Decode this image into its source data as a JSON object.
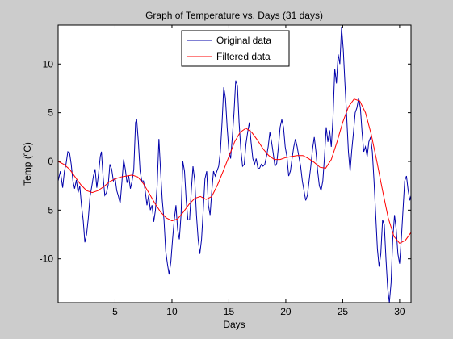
{
  "chart_data": {
    "type": "line",
    "title": "Graph of Temperature vs. Days (31 days)",
    "xlabel": "Days",
    "ylabel": "Temp (ºC)",
    "xlim": [
      0,
      31
    ],
    "ylim": [
      -14.5,
      14
    ],
    "xticks": [
      5,
      10,
      15,
      20,
      25,
      30
    ],
    "yticks": [
      -10,
      -5,
      0,
      5,
      10
    ],
    "grid": false,
    "legend": {
      "position": "top-center"
    },
    "series": [
      {
        "name": "Original data",
        "color": "#0000aa",
        "points": [
          [
            0.0,
            -2.0
          ],
          [
            0.2,
            -1.0
          ],
          [
            0.4,
            -2.7
          ],
          [
            0.55,
            -1.0
          ],
          [
            0.7,
            -0.2
          ],
          [
            0.85,
            1.0
          ],
          [
            1.0,
            0.9
          ],
          [
            1.15,
            -0.3
          ],
          [
            1.3,
            -2.0
          ],
          [
            1.45,
            -2.8
          ],
          [
            1.6,
            -1.9
          ],
          [
            1.75,
            -3.2
          ],
          [
            1.9,
            -2.5
          ],
          [
            2.05,
            -4.5
          ],
          [
            2.2,
            -6.0
          ],
          [
            2.35,
            -8.3
          ],
          [
            2.5,
            -7.5
          ],
          [
            2.65,
            -5.8
          ],
          [
            2.8,
            -3.6
          ],
          [
            2.95,
            -2.6
          ],
          [
            3.1,
            -1.5
          ],
          [
            3.25,
            -0.8
          ],
          [
            3.4,
            -2.7
          ],
          [
            3.55,
            -1.3
          ],
          [
            3.7,
            0.5
          ],
          [
            3.8,
            1.0
          ],
          [
            3.95,
            -1.6
          ],
          [
            4.1,
            -3.5
          ],
          [
            4.25,
            -3.2
          ],
          [
            4.4,
            -2.4
          ],
          [
            4.55,
            -0.3
          ],
          [
            4.7,
            -0.8
          ],
          [
            4.85,
            -2.0
          ],
          [
            5.0,
            -1.7
          ],
          [
            5.15,
            -3.0
          ],
          [
            5.3,
            -3.6
          ],
          [
            5.45,
            -4.3
          ],
          [
            5.6,
            -2.2
          ],
          [
            5.75,
            0.2
          ],
          [
            5.9,
            -0.8
          ],
          [
            6.05,
            -2.2
          ],
          [
            6.2,
            -1.5
          ],
          [
            6.35,
            -2.8
          ],
          [
            6.5,
            -2.0
          ],
          [
            6.65,
            -0.8
          ],
          [
            6.8,
            4.0
          ],
          [
            6.9,
            4.3
          ],
          [
            7.05,
            2.0
          ],
          [
            7.2,
            -1.0
          ],
          [
            7.35,
            -2.0
          ],
          [
            7.5,
            -2.0
          ],
          [
            7.65,
            -3.0
          ],
          [
            7.8,
            -4.5
          ],
          [
            7.95,
            -3.5
          ],
          [
            8.1,
            -5.0
          ],
          [
            8.25,
            -4.5
          ],
          [
            8.4,
            -6.2
          ],
          [
            8.55,
            -5.0
          ],
          [
            8.7,
            -2.5
          ],
          [
            8.85,
            2.3
          ],
          [
            9.0,
            -1.0
          ],
          [
            9.15,
            -4.0
          ],
          [
            9.3,
            -6.0
          ],
          [
            9.45,
            -9.2
          ],
          [
            9.6,
            -10.5
          ],
          [
            9.75,
            -11.6
          ],
          [
            9.9,
            -10.3
          ],
          [
            10.05,
            -8.0
          ],
          [
            10.2,
            -6.0
          ],
          [
            10.35,
            -4.5
          ],
          [
            10.5,
            -7.0
          ],
          [
            10.65,
            -8.0
          ],
          [
            10.8,
            -5.5
          ],
          [
            10.95,
            0.0
          ],
          [
            11.1,
            -1.0
          ],
          [
            11.25,
            -4.0
          ],
          [
            11.4,
            -6.0
          ],
          [
            11.55,
            -6.0
          ],
          [
            11.7,
            -3.0
          ],
          [
            11.85,
            -0.5
          ],
          [
            12.0,
            -2.0
          ],
          [
            12.15,
            -5.5
          ],
          [
            12.3,
            -8.0
          ],
          [
            12.45,
            -9.5
          ],
          [
            12.6,
            -8.0
          ],
          [
            12.75,
            -5.0
          ],
          [
            12.9,
            -1.8
          ],
          [
            13.05,
            -1.0
          ],
          [
            13.2,
            -4.5
          ],
          [
            13.35,
            -5.5
          ],
          [
            13.5,
            -3.0
          ],
          [
            13.65,
            -1.0
          ],
          [
            13.8,
            -1.5
          ],
          [
            13.95,
            -1.0
          ],
          [
            14.1,
            -0.5
          ],
          [
            14.25,
            1.0
          ],
          [
            14.4,
            4.0
          ],
          [
            14.55,
            7.6
          ],
          [
            14.7,
            6.5
          ],
          [
            14.85,
            3.5
          ],
          [
            15.0,
            1.0
          ],
          [
            15.15,
            0.3
          ],
          [
            15.3,
            2.5
          ],
          [
            15.45,
            5.0
          ],
          [
            15.6,
            8.3
          ],
          [
            15.75,
            7.8
          ],
          [
            15.9,
            4.0
          ],
          [
            16.05,
            1.2
          ],
          [
            16.2,
            -0.5
          ],
          [
            16.35,
            -0.3
          ],
          [
            16.5,
            1.8
          ],
          [
            16.65,
            3.0
          ],
          [
            16.8,
            4.0
          ],
          [
            16.95,
            2.0
          ],
          [
            17.1,
            0.3
          ],
          [
            17.25,
            -0.3
          ],
          [
            17.4,
            0.3
          ],
          [
            17.55,
            -0.7
          ],
          [
            17.7,
            -0.7
          ],
          [
            17.85,
            -0.3
          ],
          [
            18.0,
            -0.5
          ],
          [
            18.15,
            -0.3
          ],
          [
            18.3,
            0.5
          ],
          [
            18.45,
            1.5
          ],
          [
            18.6,
            3.0
          ],
          [
            18.75,
            2.0
          ],
          [
            18.9,
            0.8
          ],
          [
            19.05,
            -0.5
          ],
          [
            19.2,
            -0.2
          ],
          [
            19.35,
            1.5
          ],
          [
            19.5,
            3.5
          ],
          [
            19.65,
            4.3
          ],
          [
            19.8,
            3.5
          ],
          [
            19.95,
            1.5
          ],
          [
            20.1,
            0.5
          ],
          [
            20.25,
            -1.5
          ],
          [
            20.4,
            -1.0
          ],
          [
            20.55,
            0.3
          ],
          [
            20.7,
            1.5
          ],
          [
            20.85,
            2.3
          ],
          [
            21.0,
            1.5
          ],
          [
            21.15,
            0.5
          ],
          [
            21.3,
            -0.5
          ],
          [
            21.45,
            -2.0
          ],
          [
            21.6,
            -3.0
          ],
          [
            21.75,
            -4.0
          ],
          [
            21.9,
            -3.5
          ],
          [
            22.05,
            -2.0
          ],
          [
            22.2,
            -0.5
          ],
          [
            22.35,
            1.3
          ],
          [
            22.5,
            2.5
          ],
          [
            22.65,
            1.0
          ],
          [
            22.8,
            -1.0
          ],
          [
            22.95,
            -2.5
          ],
          [
            23.1,
            -3.0
          ],
          [
            23.25,
            -2.0
          ],
          [
            23.4,
            0.5
          ],
          [
            23.55,
            3.5
          ],
          [
            23.7,
            2.0
          ],
          [
            23.85,
            3.2
          ],
          [
            24.0,
            1.5
          ],
          [
            24.15,
            4.5
          ],
          [
            24.3,
            9.5
          ],
          [
            24.45,
            8.0
          ],
          [
            24.6,
            11.0
          ],
          [
            24.75,
            10.0
          ],
          [
            24.9,
            13.8
          ],
          [
            25.05,
            11.5
          ],
          [
            25.2,
            8.0
          ],
          [
            25.35,
            4.5
          ],
          [
            25.5,
            1.0
          ],
          [
            25.65,
            -1.0
          ],
          [
            25.8,
            1.2
          ],
          [
            25.95,
            3.0
          ],
          [
            26.1,
            5.0
          ],
          [
            26.25,
            5.5
          ],
          [
            26.4,
            6.5
          ],
          [
            26.55,
            5.5
          ],
          [
            26.7,
            3.0
          ],
          [
            26.85,
            1.0
          ],
          [
            27.0,
            1.5
          ],
          [
            27.15,
            0.5
          ],
          [
            27.3,
            2.0
          ],
          [
            27.45,
            2.5
          ],
          [
            27.6,
            1.0
          ],
          [
            27.75,
            -2.0
          ],
          [
            27.9,
            -5.5
          ],
          [
            28.05,
            -9.0
          ],
          [
            28.2,
            -10.8
          ],
          [
            28.35,
            -9.5
          ],
          [
            28.5,
            -6.0
          ],
          [
            28.65,
            -6.5
          ],
          [
            28.8,
            -10.0
          ],
          [
            28.95,
            -13.0
          ],
          [
            29.1,
            -14.5
          ],
          [
            29.25,
            -12.5
          ],
          [
            29.4,
            -8.0
          ],
          [
            29.55,
            -5.5
          ],
          [
            29.7,
            -7.0
          ],
          [
            29.85,
            -9.5
          ],
          [
            30.0,
            -10.5
          ],
          [
            30.15,
            -8.0
          ],
          [
            30.3,
            -5.0
          ],
          [
            30.45,
            -2.0
          ],
          [
            30.6,
            -1.5
          ],
          [
            30.75,
            -3.0
          ],
          [
            30.9,
            -4.0
          ],
          [
            31.0,
            -3.5
          ]
        ]
      },
      {
        "name": "Filtered data",
        "color": "#ff0000",
        "points": [
          [
            0.0,
            0.0
          ],
          [
            0.5,
            -0.3
          ],
          [
            1.0,
            -0.8
          ],
          [
            1.5,
            -1.6
          ],
          [
            2.0,
            -2.4
          ],
          [
            2.5,
            -3.0
          ],
          [
            3.0,
            -3.2
          ],
          [
            3.5,
            -3.0
          ],
          [
            4.0,
            -2.6
          ],
          [
            4.5,
            -2.1
          ],
          [
            5.0,
            -1.8
          ],
          [
            5.5,
            -1.6
          ],
          [
            6.0,
            -1.5
          ],
          [
            6.5,
            -1.4
          ],
          [
            7.0,
            -1.6
          ],
          [
            7.5,
            -2.3
          ],
          [
            8.0,
            -3.3
          ],
          [
            8.5,
            -4.3
          ],
          [
            9.0,
            -5.2
          ],
          [
            9.5,
            -5.8
          ],
          [
            10.0,
            -6.1
          ],
          [
            10.5,
            -5.9
          ],
          [
            11.0,
            -5.2
          ],
          [
            11.5,
            -4.4
          ],
          [
            12.0,
            -3.8
          ],
          [
            12.5,
            -3.6
          ],
          [
            13.0,
            -3.9
          ],
          [
            13.5,
            -3.6
          ],
          [
            14.0,
            -2.4
          ],
          [
            14.5,
            -1.0
          ],
          [
            15.0,
            0.5
          ],
          [
            15.5,
            2.0
          ],
          [
            16.0,
            3.0
          ],
          [
            16.5,
            3.4
          ],
          [
            17.0,
            3.0
          ],
          [
            17.5,
            2.2
          ],
          [
            18.0,
            1.3
          ],
          [
            18.5,
            0.6
          ],
          [
            19.0,
            0.2
          ],
          [
            19.5,
            0.2
          ],
          [
            20.0,
            0.4
          ],
          [
            20.5,
            0.5
          ],
          [
            21.0,
            0.6
          ],
          [
            21.5,
            0.6
          ],
          [
            22.0,
            0.3
          ],
          [
            22.5,
            -0.1
          ],
          [
            23.0,
            -0.6
          ],
          [
            23.5,
            -0.7
          ],
          [
            24.0,
            0.2
          ],
          [
            24.5,
            2.0
          ],
          [
            25.0,
            4.0
          ],
          [
            25.5,
            5.6
          ],
          [
            26.0,
            6.4
          ],
          [
            26.5,
            6.2
          ],
          [
            27.0,
            5.0
          ],
          [
            27.5,
            2.8
          ],
          [
            28.0,
            0.0
          ],
          [
            28.5,
            -3.0
          ],
          [
            29.0,
            -5.8
          ],
          [
            29.5,
            -7.7
          ],
          [
            30.0,
            -8.4
          ],
          [
            30.5,
            -8.1
          ],
          [
            31.0,
            -7.3
          ]
        ]
      }
    ]
  }
}
